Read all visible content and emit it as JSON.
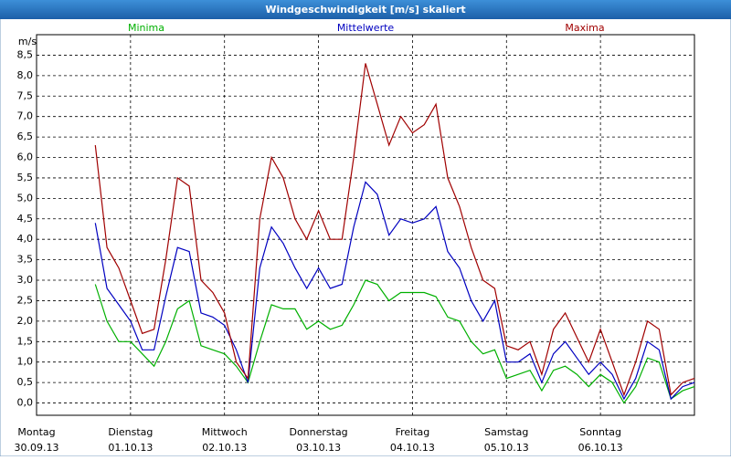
{
  "chart_data": {
    "type": "line",
    "title": "Windgeschwindigkeit [m/s] skaliert",
    "y_label": "m/s",
    "x_labels": [
      {
        "weekday": "Montag",
        "date": "30.09.13"
      },
      {
        "weekday": "Dienstag",
        "date": "01.10.13"
      },
      {
        "weekday": "Mittwoch",
        "date": "02.10.13"
      },
      {
        "weekday": "Donnerstag",
        "date": "03.10.13"
      },
      {
        "weekday": "Freitag",
        "date": "04.10.13"
      },
      {
        "weekday": "Samstag",
        "date": "05.10.13"
      },
      {
        "weekday": "Sonntag",
        "date": "06.10.13"
      }
    ],
    "ylim": [
      -0.3,
      9.0
    ],
    "yticks": [
      {
        "value": 0,
        "label": "0,0"
      },
      {
        "value": 0.5,
        "label": "0,5"
      },
      {
        "value": 1,
        "label": "1,0"
      },
      {
        "value": 1.5,
        "label": "1,5"
      },
      {
        "value": 2,
        "label": "2,0"
      },
      {
        "value": 2.5,
        "label": "2,5"
      },
      {
        "value": 3,
        "label": "3,0"
      },
      {
        "value": 3.5,
        "label": "3,5"
      },
      {
        "value": 4,
        "label": "4,0"
      },
      {
        "value": 4.5,
        "label": "4,5"
      },
      {
        "value": 5,
        "label": "5,0"
      },
      {
        "value": 5.5,
        "label": "5,5"
      },
      {
        "value": 6,
        "label": "6,0"
      },
      {
        "value": 6.5,
        "label": "6,5"
      },
      {
        "value": 7,
        "label": "7,0"
      },
      {
        "value": 7.5,
        "label": "7,5"
      },
      {
        "value": 8,
        "label": "8,0"
      },
      {
        "value": 8.5,
        "label": "8,5"
      }
    ],
    "grid": true,
    "series": [
      {
        "name": "Minima",
        "color": "#00b000",
        "values": [
          null,
          null,
          null,
          null,
          null,
          2.9,
          2.0,
          1.5,
          1.5,
          1.2,
          0.9,
          1.5,
          2.3,
          2.5,
          1.4,
          1.3,
          1.2,
          0.9,
          0.5,
          1.5,
          2.4,
          2.3,
          2.3,
          1.8,
          2.0,
          1.8,
          1.9,
          2.4,
          3.0,
          2.9,
          2.5,
          2.7,
          2.7,
          2.7,
          2.6,
          2.1,
          2.0,
          1.5,
          1.2,
          1.3,
          0.6,
          0.7,
          0.8,
          0.3,
          0.8,
          0.9,
          0.7,
          0.4,
          0.7,
          0.5,
          0.0,
          0.4,
          1.1,
          1.0,
          0.1,
          0.3,
          0.4
        ]
      },
      {
        "name": "Mittelwerte",
        "color": "#0000c0",
        "values": [
          null,
          null,
          null,
          null,
          null,
          4.4,
          2.8,
          2.4,
          2.0,
          1.3,
          1.3,
          2.6,
          3.8,
          3.7,
          2.2,
          2.1,
          1.9,
          1.3,
          0.5,
          3.3,
          4.3,
          3.9,
          3.3,
          2.8,
          3.3,
          2.8,
          2.9,
          4.3,
          5.4,
          5.1,
          4.1,
          4.5,
          4.4,
          4.5,
          4.8,
          3.7,
          3.3,
          2.5,
          2.0,
          2.5,
          1.0,
          1.0,
          1.2,
          0.5,
          1.2,
          1.5,
          1.1,
          0.7,
          1.0,
          0.7,
          0.1,
          0.6,
          1.5,
          1.3,
          0.1,
          0.4,
          0.5
        ]
      },
      {
        "name": "Maxima",
        "color": "#a00000",
        "values": [
          null,
          null,
          null,
          null,
          null,
          6.3,
          3.8,
          3.3,
          2.5,
          1.7,
          1.8,
          3.5,
          5.5,
          5.3,
          3.0,
          2.7,
          2.2,
          1.0,
          0.6,
          4.5,
          6.0,
          5.5,
          4.5,
          4.0,
          4.7,
          4.0,
          4.0,
          6.0,
          8.3,
          7.3,
          6.3,
          7.0,
          6.6,
          6.8,
          7.3,
          5.5,
          4.8,
          3.8,
          3.0,
          2.8,
          1.4,
          1.3,
          1.5,
          0.7,
          1.8,
          2.2,
          1.6,
          1.0,
          1.8,
          1.0,
          0.2,
          1.0,
          2.0,
          1.8,
          0.2,
          0.5,
          0.6
        ]
      }
    ]
  }
}
